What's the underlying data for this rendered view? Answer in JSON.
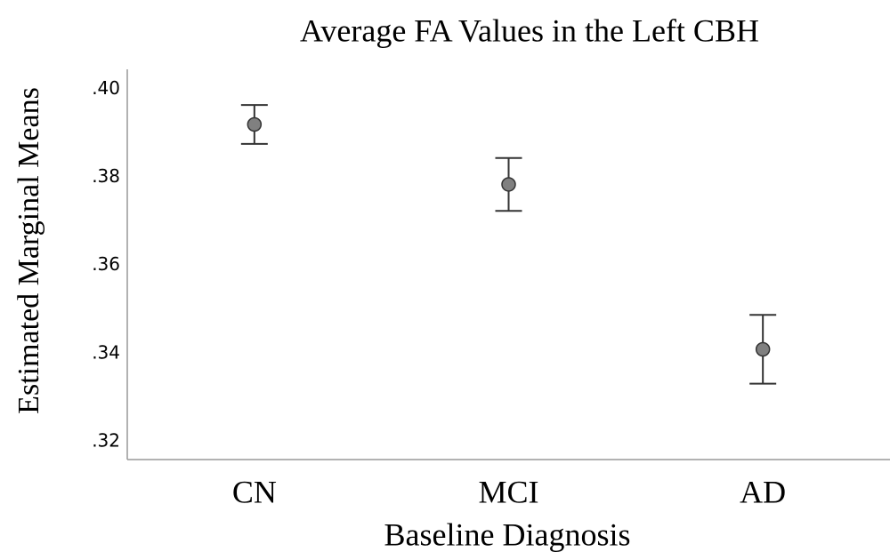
{
  "chart_data": {
    "type": "errorbar",
    "title": "Average FA Values in the Left CBH",
    "xlabel": "Baseline Diagnosis",
    "ylabel": "Estimated Marginal Means",
    "categories": [
      "CN",
      "MCI",
      "AD"
    ],
    "values": [
      0.392,
      0.3784,
      0.341
    ],
    "errors": [
      0.0044,
      0.006,
      0.0078
    ],
    "color": "#808080",
    "ylim": [
      0.316,
      0.4045
    ],
    "yticks": [
      {
        "value": 0.32,
        "label": ".32"
      },
      {
        "value": 0.34,
        "label": ".34"
      },
      {
        "value": 0.36,
        "label": ".36"
      },
      {
        "value": 0.38,
        "label": ".38"
      },
      {
        "value": 0.4,
        "label": ".40"
      }
    ],
    "grid": false
  }
}
